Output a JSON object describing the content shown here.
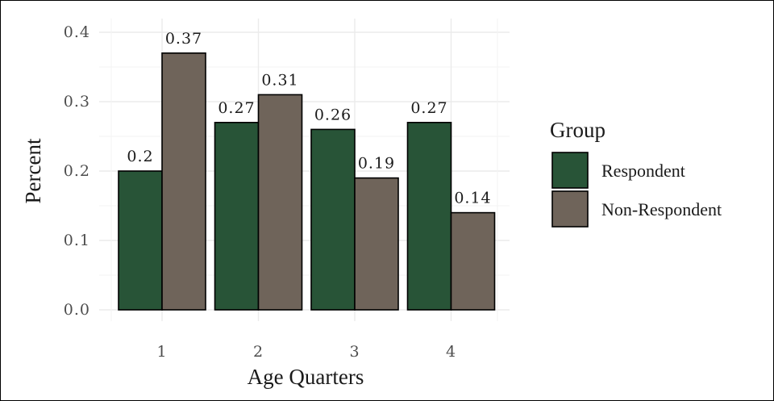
{
  "chart_data": {
    "type": "bar",
    "title": "",
    "xlabel": "Age Quarters",
    "ylabel": "Percent",
    "categories": [
      "1",
      "2",
      "3",
      "4"
    ],
    "ylim": [
      0,
      0.4
    ],
    "yticks": [
      0.0,
      0.1,
      0.2,
      0.3,
      0.4
    ],
    "ytick_labels": [
      "0.0",
      "0.1",
      "0.2",
      "0.3",
      "0.4"
    ],
    "grid": true,
    "legend": {
      "title": "Group",
      "position": "right"
    },
    "series": [
      {
        "name": "Respondent",
        "color": "#285437",
        "values": [
          0.2,
          0.27,
          0.26,
          0.27
        ],
        "labels": [
          "0.2",
          "0.27",
          "0.26",
          "0.27"
        ]
      },
      {
        "name": "Non-Respondent",
        "color": "#6f645a",
        "values": [
          0.37,
          0.31,
          0.19,
          0.14
        ],
        "labels": [
          "0.37",
          "0.31",
          "0.19",
          "0.14"
        ]
      }
    ]
  }
}
